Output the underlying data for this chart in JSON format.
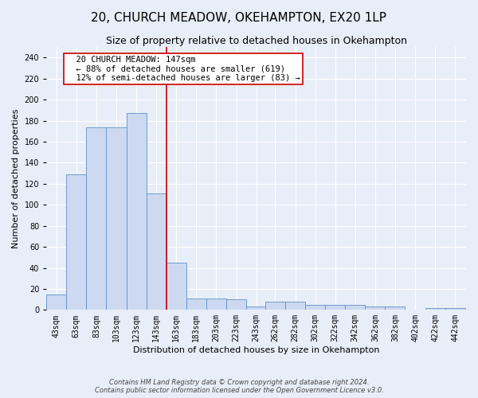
{
  "title": "20, CHURCH MEADOW, OKEHAMPTON, EX20 1LP",
  "subtitle": "Size of property relative to detached houses in Okehampton",
  "xlabel": "Distribution of detached houses by size in Okehampton",
  "ylabel": "Number of detached properties",
  "footnote": "Contains HM Land Registry data © Crown copyright and database right 2024.\nContains public sector information licensed under the Open Government Licence v3.0.",
  "bin_labels": [
    "43sqm",
    "63sqm",
    "83sqm",
    "103sqm",
    "123sqm",
    "143sqm",
    "163sqm",
    "183sqm",
    "203sqm",
    "223sqm",
    "243sqm",
    "262sqm",
    "282sqm",
    "302sqm",
    "322sqm",
    "342sqm",
    "362sqm",
    "382sqm",
    "402sqm",
    "422sqm",
    "442sqm"
  ],
  "bar_values": [
    15,
    129,
    174,
    174,
    187,
    111,
    45,
    11,
    11,
    10,
    3,
    8,
    8,
    5,
    5,
    5,
    3,
    3,
    0,
    2,
    2
  ],
  "bar_color": "#ccd9f0",
  "bar_edge_color": "#6090c8",
  "property_line_x": 153,
  "property_line_label": "20 CHURCH MEADOW: 147sqm",
  "annotation_line1": "← 88% of detached houses are smaller (619)",
  "annotation_line2": "12% of semi-detached houses are larger (83) →",
  "annotation_box_color": "#ffffff",
  "annotation_box_edge": "#cc0000",
  "vline_color": "#cc0000",
  "ylim": [
    0,
    250
  ],
  "yticks": [
    0,
    20,
    40,
    60,
    80,
    100,
    120,
    140,
    160,
    180,
    200,
    220,
    240
  ],
  "bg_color": "#e8eef8",
  "plot_bg_color": "#e8eef8",
  "grid_color": "#ffffff",
  "title_fontsize": 11,
  "subtitle_fontsize": 9,
  "axis_label_fontsize": 8,
  "tick_fontsize": 7,
  "annotation_fontsize": 7.5
}
